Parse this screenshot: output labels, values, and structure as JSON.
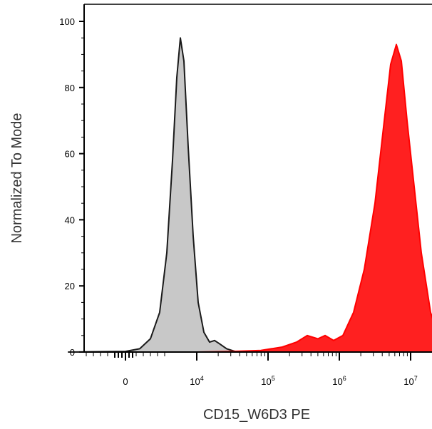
{
  "chart_data": {
    "type": "area",
    "xlabel": "CD15_W6D3 PE",
    "ylabel": "Normalized To Mode",
    "x_scale": "biexponential",
    "y_ticks": [
      "0",
      "20",
      "40",
      "60",
      "80",
      "100"
    ],
    "x_ticks": [
      {
        "base": "0",
        "exp": ""
      },
      {
        "base": "10",
        "exp": "4"
      },
      {
        "base": "10",
        "exp": "5"
      },
      {
        "base": "10",
        "exp": "6"
      },
      {
        "base": "10",
        "exp": "7"
      }
    ],
    "ylim": [
      0,
      100
    ],
    "grid": false,
    "series": [
      {
        "fill": "#c8c8c8",
        "stroke": "#1a1a1a",
        "points": [
          [
            -0.8,
            0
          ],
          [
            0.0,
            0.2
          ],
          [
            0.2,
            1
          ],
          [
            0.35,
            4
          ],
          [
            0.48,
            12
          ],
          [
            0.58,
            30
          ],
          [
            0.66,
            58
          ],
          [
            0.72,
            83
          ],
          [
            0.77,
            95
          ],
          [
            0.82,
            88
          ],
          [
            0.88,
            62
          ],
          [
            0.95,
            35
          ],
          [
            1.02,
            15
          ],
          [
            1.1,
            6
          ],
          [
            1.18,
            3
          ],
          [
            1.25,
            3.5
          ],
          [
            1.32,
            2.5
          ],
          [
            1.42,
            1
          ],
          [
            1.52,
            0.3
          ],
          [
            1.6,
            0
          ]
        ]
      },
      {
        "fill": "#ff2020",
        "stroke": "#ff0000",
        "points": [
          [
            -0.6,
            0
          ],
          [
            1.0,
            0
          ],
          [
            1.5,
            0.2
          ],
          [
            1.9,
            0.5
          ],
          [
            2.2,
            1.5
          ],
          [
            2.4,
            3
          ],
          [
            2.55,
            5
          ],
          [
            2.7,
            4
          ],
          [
            2.8,
            5
          ],
          [
            2.92,
            3.5
          ],
          [
            3.05,
            5
          ],
          [
            3.2,
            12
          ],
          [
            3.35,
            25
          ],
          [
            3.5,
            45
          ],
          [
            3.62,
            68
          ],
          [
            3.72,
            87
          ],
          [
            3.8,
            93
          ],
          [
            3.87,
            88
          ],
          [
            3.95,
            70
          ],
          [
            4.05,
            50
          ],
          [
            4.15,
            30
          ],
          [
            4.28,
            12
          ],
          [
            4.4,
            4
          ],
          [
            4.55,
            1
          ],
          [
            4.7,
            0
          ]
        ]
      }
    ]
  }
}
